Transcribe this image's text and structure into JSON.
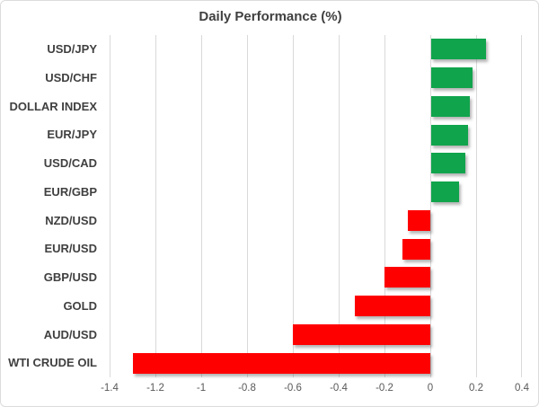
{
  "chart_data": {
    "type": "bar",
    "orientation": "horizontal",
    "title": "Daily Performance (%)",
    "xlabel": "",
    "ylabel": "",
    "categories": [
      "USD/JPY",
      "USD/CHF",
      "DOLLAR INDEX",
      "EUR/JPY",
      "USD/CAD",
      "EUR/GBP",
      "NZD/USD",
      "EUR/USD",
      "GBP/USD",
      "GOLD",
      "AUD/USD",
      "WTI CRUDE OIL"
    ],
    "values": [
      0.24,
      0.18,
      0.17,
      0.16,
      0.15,
      0.12,
      -0.1,
      -0.12,
      -0.2,
      -0.33,
      -0.6,
      -1.3
    ],
    "xlim": [
      -1.4,
      0.4
    ],
    "xticks": [
      -1.4,
      -1.2,
      -1.0,
      -0.8,
      -0.6,
      -0.4,
      -0.2,
      0,
      0.2,
      0.4
    ],
    "xtick_labels": [
      "-1.4",
      "-1.2",
      "-1",
      "-0.8",
      "-0.6",
      "-0.4",
      "-0.2",
      "0",
      "0.2",
      "0.4"
    ],
    "grid": true,
    "legend_position": "none",
    "colors": {
      "positive": "#10A44C",
      "negative": "#FE0000",
      "gridline": "#D9D9D9",
      "title_text": "#404040",
      "category_text": "#404040",
      "tick_text": "#595959"
    }
  }
}
